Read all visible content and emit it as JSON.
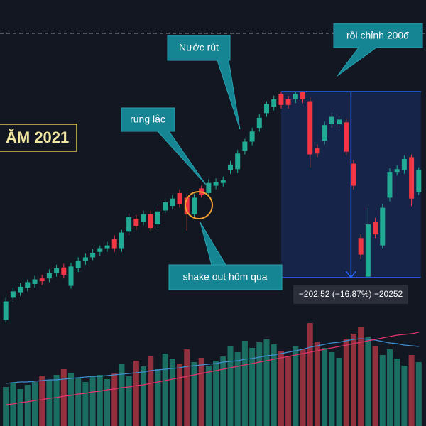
{
  "chart_data": {
    "type": "candlestick",
    "title": "ĂM 2021",
    "ylim": [
      836.4,
      1300.2
    ],
    "xlim": [
      -0.8,
      58
    ],
    "up_color": "#22ab94",
    "down_color": "#f23645",
    "open": [
      952,
      976,
      982,
      987,
      991,
      997,
      997,
      1003,
      1009,
      989,
      1008,
      1016,
      1020,
      1026,
      1030,
      1040,
      1030,
      1048,
      1062,
      1059,
      1067,
      1056,
      1071,
      1076,
      1090,
      1085,
      1067,
      1095,
      1090,
      1098,
      1101,
      1115,
      1116,
      1136,
      1146,
      1161,
      1177,
      1184,
      1198,
      1192,
      1192,
      1200,
      1190,
      1139,
      1147,
      1165,
      1165,
      1167,
      1122,
      1041,
      999,
      1059,
      1033,
      1085,
      1113,
      1115,
      1129,
      1091
    ],
    "high": [
      976,
      987,
      992,
      996,
      1000,
      1001,
      1007,
      1012,
      1013,
      1014,
      1020,
      1024,
      1029,
      1033,
      1037,
      1044,
      1050,
      1068,
      1066,
      1071,
      1071,
      1074,
      1084,
      1088,
      1094,
      1089,
      1089,
      1098,
      1105,
      1106,
      1108,
      1125,
      1137,
      1149,
      1161,
      1176,
      1190,
      1196,
      1200,
      1196,
      1200,
      1200.5,
      1194,
      1143,
      1168,
      1177,
      1174,
      1171,
      1126,
      1045,
      1074,
      1063,
      1078,
      1117,
      1120,
      1131,
      1132,
      1118
    ],
    "low": [
      949,
      972,
      978,
      983,
      987,
      990,
      993,
      999,
      997,
      986,
      1004,
      1012,
      1017,
      1022,
      1026,
      1026,
      1026,
      1044,
      1050,
      1055,
      1048,
      1052,
      1068,
      1072,
      1074,
      1049,
      1063,
      1085,
      1086,
      1094,
      1097,
      1111,
      1112,
      1132,
      1142,
      1157,
      1173,
      1180,
      1182,
      1182,
      1188,
      1188,
      1118,
      1129,
      1143,
      1161,
      1161,
      1131,
      1094,
      1018,
      998,
      1041,
      1030,
      1081,
      1109,
      1111,
      1076,
      1088
    ],
    "close": [
      972,
      983,
      988,
      993,
      996,
      994,
      1003,
      1008,
      1001,
      1010,
      1016,
      1020,
      1025,
      1030,
      1033,
      1030,
      1047,
      1064,
      1054,
      1067,
      1052,
      1070,
      1080,
      1084,
      1078,
      1067,
      1085,
      1088,
      1101,
      1102,
      1104,
      1121,
      1133,
      1146,
      1157,
      1172,
      1187,
      1192,
      1186,
      1186,
      1198,
      1192,
      1132,
      1133,
      1164,
      1173,
      1170,
      1135,
      1098,
      1023,
      1056,
      1045,
      1074,
      1113,
      1116,
      1127,
      1084,
      1115
    ],
    "volume": {
      "ylim": [
        0,
        150
      ],
      "up_color": "#1b6e61",
      "down_color": "#93303d",
      "values": [
        55,
        60,
        52,
        58,
        62,
        70,
        65,
        72,
        80,
        75,
        68,
        62,
        70,
        72,
        66,
        74,
        88,
        70,
        92,
        84,
        98,
        80,
        102,
        95,
        88,
        108,
        90,
        96,
        85,
        92,
        98,
        112,
        104,
        120,
        110,
        118,
        122,
        115,
        105,
        98,
        112,
        108,
        145,
        118,
        110,
        104,
        96,
        122,
        130,
        140,
        125,
        112,
        100,
        108,
        95,
        85,
        100,
        90
      ],
      "series": [
        {
          "color": "#3f8fd0",
          "values": [
            60,
            61,
            62,
            62,
            63,
            64,
            65,
            65,
            66,
            67,
            68,
            69,
            70,
            70,
            71,
            72,
            73,
            74,
            75,
            76,
            78,
            79,
            80,
            81,
            82,
            84,
            85,
            86,
            87,
            88,
            90,
            91,
            92,
            94,
            95,
            97,
            99,
            100,
            102,
            104,
            106,
            108,
            111,
            113,
            115,
            117,
            118,
            120,
            122,
            123,
            122,
            121,
            119,
            117,
            116,
            114,
            113,
            112
          ]
        },
        {
          "color": "#e2336b",
          "values": [
            30,
            31,
            33,
            34,
            36,
            37,
            39,
            40,
            42,
            43,
            45,
            46,
            48,
            49,
            51,
            52,
            54,
            55,
            57,
            58,
            60,
            62,
            64,
            66,
            68,
            70,
            72,
            74,
            76,
            78,
            80,
            82,
            84,
            86,
            88,
            90,
            92,
            94,
            96,
            98,
            100,
            102,
            104,
            106,
            108,
            110,
            112,
            114,
            116,
            118,
            120,
            122,
            124,
            126,
            128,
            129,
            130,
            132
          ]
        }
      ]
    },
    "reference_line": 1264,
    "measure": {
      "start": 38,
      "end": 57,
      "high": 1200.5,
      "low": 998,
      "color": "#2962ff",
      "label": "−202.52 (−16.87%) −20252"
    },
    "annotations": [
      "rung lắc",
      "Nước rút",
      "shake out hôm qua",
      "rồi chỉnh 200đ"
    ]
  }
}
